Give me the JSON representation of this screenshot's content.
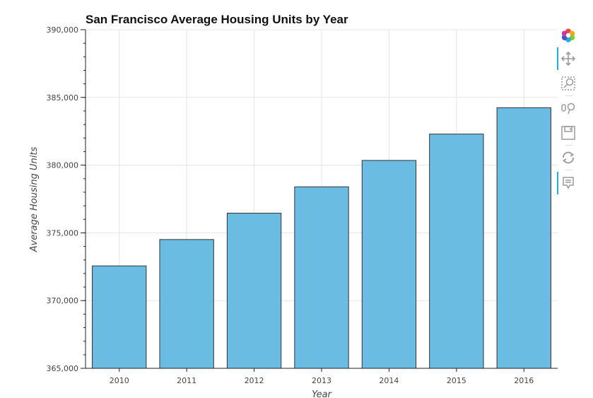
{
  "chart_data": {
    "type": "bar",
    "title": "San Francisco Average Housing Units by Year",
    "xlabel": "Year",
    "ylabel": "Average Housing Units",
    "categories": [
      "2010",
      "2011",
      "2012",
      "2013",
      "2014",
      "2015",
      "2016"
    ],
    "values": [
      372560,
      374507,
      376454,
      378401,
      380348,
      382295,
      384242
    ],
    "ylim": [
      365000,
      390000
    ],
    "yticks": [
      365000,
      370000,
      375000,
      380000,
      385000,
      390000
    ],
    "ytick_labels": [
      "365,000",
      "370,000",
      "375,000",
      "380,000",
      "385,000",
      "390,000"
    ],
    "grid": true,
    "colors": {
      "bar_fill": "#6bbce3",
      "bar_stroke": "#333333",
      "grid": "#e5e5e5"
    }
  },
  "toolbar": {
    "tools": [
      {
        "name": "bokeh-logo-icon",
        "icon": "logo",
        "active": false,
        "clickable": true
      },
      {
        "name": "pan-tool-icon",
        "icon": "pan",
        "active": true,
        "clickable": true
      },
      {
        "name": "box-zoom-tool-icon",
        "icon": "box-zoom",
        "active": false,
        "clickable": true
      },
      {
        "name": "wheel-zoom-tool-icon",
        "icon": "wheel-zoom",
        "active": false,
        "clickable": true
      },
      {
        "name": "save-tool-icon",
        "icon": "save",
        "active": false,
        "clickable": true
      },
      {
        "name": "reset-tool-icon",
        "icon": "reset",
        "active": false,
        "clickable": true
      },
      {
        "name": "hover-tool-icon",
        "icon": "hover",
        "active": true,
        "clickable": true
      }
    ],
    "accent": "#26aae1"
  }
}
